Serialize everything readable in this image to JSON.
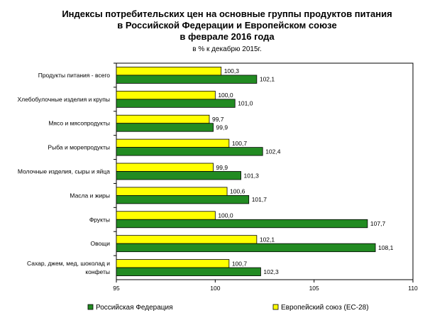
{
  "chart_data": {
    "type": "bar",
    "orientation": "horizontal",
    "title_lines": [
      "Индексы потребительских цен на основные группы продуктов питания",
      "в Российской Федерации и Европейском союзе",
      "в феврале 2016 года"
    ],
    "subtitle": "в % к декабрю 2015г.",
    "categories": [
      [
        "Продукты питания - всего"
      ],
      [
        "Хлебобулочные изделия и крупы"
      ],
      [
        "Мясо и мясопродукты"
      ],
      [
        "Рыба и морепродукты"
      ],
      [
        "Молочные изделия, сыры и яйца"
      ],
      [
        "Масла и жиры"
      ],
      [
        "Фрукты"
      ],
      [
        "Овощи"
      ],
      [
        "Сахар, джем, мед, шоколад и",
        "конфеты"
      ]
    ],
    "series": [
      {
        "name": "Европейский союз (ЕС-28)",
        "color": "#ffff00",
        "values": [
          100.3,
          100.0,
          99.7,
          100.7,
          99.9,
          100.6,
          100.0,
          102.1,
          100.7
        ],
        "labels": [
          "100,3",
          "100,0",
          "99,7",
          "100,7",
          "99,9",
          "100,6",
          "100,0",
          "102,1",
          "100,7"
        ]
      },
      {
        "name": "Российская Федерация",
        "color": "#228b22",
        "values": [
          102.1,
          101.0,
          99.9,
          102.4,
          101.3,
          101.7,
          107.7,
          108.1,
          102.3
        ],
        "labels": [
          "102,1",
          "101,0",
          "99,9",
          "102,4",
          "101,3",
          "101,7",
          "107,7",
          "108,1",
          "102,3"
        ]
      }
    ],
    "xlim": [
      95,
      110
    ],
    "xticks": [
      95,
      100,
      105,
      110
    ],
    "grid": false,
    "legend": "bottom",
    "legend_order": [
      1,
      0
    ]
  }
}
